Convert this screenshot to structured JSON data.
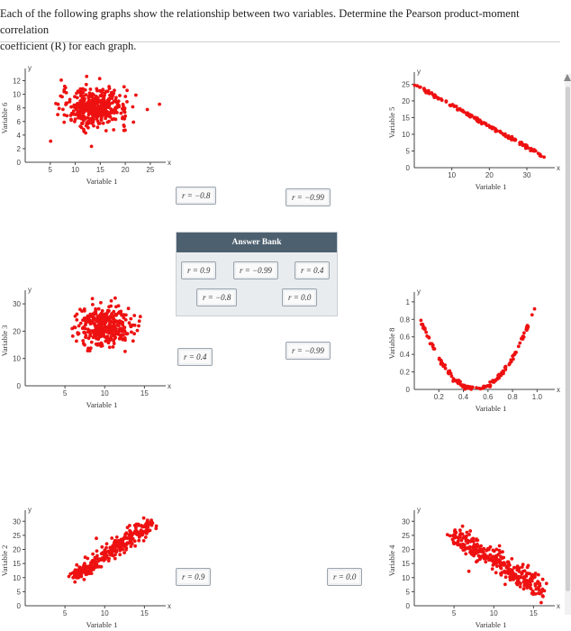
{
  "instructions": {
    "line1": "Each of the following graphs show the relationship between two variables. Determine the Pearson product-moment correlation",
    "line2": "coefficient (R) for each graph."
  },
  "answer_bank": {
    "title": "Answer Bank",
    "chips": [
      "r = 0.9",
      "r = −0.99",
      "r = 0.4",
      "r = −0.8",
      "r = 0.0"
    ]
  },
  "drop_zones": {
    "g1": "r = −0.8",
    "g2": "r = −0.99",
    "g3": "r = 0.4",
    "g4": "r = −0.99",
    "g5": "r = 0.9",
    "g6": "r = 0.0"
  },
  "colors": {
    "points": "#ee1111",
    "bank_header": "#4d6070"
  },
  "chart_data": [
    {
      "type": "scatter",
      "xlabel": "Variable 1",
      "ylabel": "Variable 6",
      "xticks": [
        "5",
        "10",
        "15",
        "20",
        "25"
      ],
      "yticks": [
        "0",
        "2",
        "4",
        "6",
        "8",
        "10",
        "12"
      ],
      "xlim": [
        0,
        27
      ],
      "ylim": [
        0,
        13
      ],
      "description_values": {
        "x_center": 14,
        "x_spread": 6,
        "y_center": 8,
        "y_spread": 2
      }
    },
    {
      "type": "scatter",
      "xlabel": "Variable 1",
      "ylabel": "Variable 5",
      "xticks": [
        "10",
        "20",
        "30"
      ],
      "yticks": [
        "0",
        "5",
        "10",
        "15",
        "20",
        "25"
      ],
      "xlim": [
        0,
        36
      ],
      "ylim": [
        0,
        27
      ],
      "description_values": {
        "x_start": 0,
        "y_start": 25,
        "x_end": 35,
        "y_end": 3
      }
    },
    {
      "type": "scatter",
      "xlabel": "Variable 1",
      "ylabel": "Variable 3",
      "xticks": [
        "5",
        "10",
        "15"
      ],
      "yticks": [
        "0",
        "10",
        "20",
        "30"
      ],
      "xlim": [
        0,
        17
      ],
      "ylim": [
        0,
        33
      ],
      "description_values": {
        "x_center": 10,
        "x_spread": 3,
        "y_center": 22,
        "y_spread": 5
      }
    },
    {
      "type": "scatter",
      "xlabel": "Variable 1",
      "ylabel": "Variable 8",
      "xticks": [
        "0.2",
        "0.4",
        "0.6",
        "0.8",
        "1.0"
      ],
      "yticks": [
        "0",
        "0.2",
        "0.4",
        "0.6",
        "0.8",
        "1"
      ],
      "xlim": [
        0,
        1.1
      ],
      "ylim": [
        0,
        1.05
      ],
      "description_values": {
        "shape": "parabola",
        "vertex_x": 0.5,
        "vertex_y": 0.0,
        "end_y": 1.0
      }
    },
    {
      "type": "scatter",
      "xlabel": "Variable 1",
      "ylabel": "Variable 2",
      "xticks": [
        "5",
        "10",
        "15"
      ],
      "yticks": [
        "0",
        "5",
        "10",
        "15",
        "20",
        "25",
        "30"
      ],
      "xlim": [
        0,
        17
      ],
      "ylim": [
        0,
        32
      ],
      "description_values": {
        "x_start": 6,
        "y_start": 10,
        "x_end": 16,
        "y_end": 30
      }
    },
    {
      "type": "scatter",
      "xlabel": "Variable 1",
      "ylabel": "Variable 4",
      "xticks": [
        "5",
        "10",
        "15"
      ],
      "yticks": [
        "0",
        "5",
        "10",
        "15",
        "20",
        "25",
        "30"
      ],
      "xlim": [
        0,
        17
      ],
      "ylim": [
        0,
        32
      ],
      "description_values": {
        "x_start": 5,
        "y_start": 25,
        "x_end": 16,
        "y_end": 6
      }
    }
  ]
}
